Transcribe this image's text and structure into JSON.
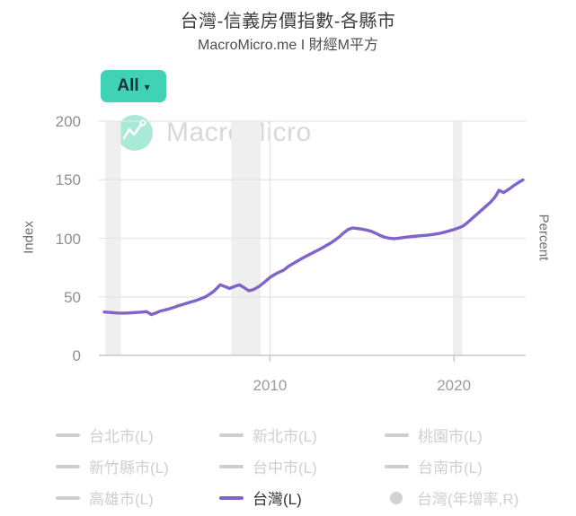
{
  "header": {
    "title": "台灣-信義房價指數-各縣市",
    "subtitle": "MacroMicro.me I 財經M平方"
  },
  "controls": {
    "range_selector": {
      "label": "All",
      "arrow": "▾"
    }
  },
  "watermark": {
    "text": "MacroMicro"
  },
  "chart_data": {
    "type": "line",
    "title": "台灣-信義房價指數-各縣市",
    "left_axis": {
      "label": "Index",
      "ticks": [
        0,
        50,
        100,
        150,
        200
      ],
      "range": [
        0,
        200
      ]
    },
    "right_axis": {
      "label": "Percent"
    },
    "x_axis": {
      "ticks": [
        2010,
        2020
      ],
      "tick_labels": [
        "2010",
        "2020"
      ],
      "range": [
        2000.7,
        2023.9
      ]
    },
    "grid": true,
    "legend_position": "bottom",
    "recession_bands": [
      [
        2001.05,
        2001.9
      ],
      [
        2007.9,
        2009.5
      ],
      [
        2020.0,
        2020.45
      ]
    ],
    "series": [
      {
        "name": "台灣(L)",
        "color": "#8164c9",
        "points": [
          [
            2001.0,
            37
          ],
          [
            2001.25,
            36.7
          ],
          [
            2001.5,
            36.4
          ],
          [
            2001.75,
            36.2
          ],
          [
            2002.0,
            36.1
          ],
          [
            2002.25,
            36.2
          ],
          [
            2002.5,
            36.4
          ],
          [
            2003.0,
            36.9
          ],
          [
            2003.3,
            37.3
          ],
          [
            2003.55,
            34.9
          ],
          [
            2003.8,
            36.2
          ],
          [
            2004.0,
            37.6
          ],
          [
            2004.25,
            38.6
          ],
          [
            2004.5,
            39.6
          ],
          [
            2004.75,
            40.8
          ],
          [
            2005.0,
            42.2
          ],
          [
            2005.25,
            43.4
          ],
          [
            2005.5,
            44.6
          ],
          [
            2005.75,
            45.8
          ],
          [
            2006.0,
            47.0
          ],
          [
            2006.25,
            48.4
          ],
          [
            2006.5,
            50.0
          ],
          [
            2006.75,
            52.5
          ],
          [
            2007.0,
            55.5
          ],
          [
            2007.3,
            60.3
          ],
          [
            2007.55,
            58.8
          ],
          [
            2007.8,
            57.2
          ],
          [
            2008.1,
            59.0
          ],
          [
            2008.35,
            60.2
          ],
          [
            2008.6,
            57.8
          ],
          [
            2008.85,
            55.2
          ],
          [
            2009.1,
            56.2
          ],
          [
            2009.4,
            58.8
          ],
          [
            2009.7,
            62.5
          ],
          [
            2010.0,
            66.5
          ],
          [
            2010.25,
            69.0
          ],
          [
            2010.5,
            71.0
          ],
          [
            2010.75,
            72.8
          ],
          [
            2011.0,
            76.0
          ],
          [
            2011.25,
            78.3
          ],
          [
            2011.5,
            80.5
          ],
          [
            2011.75,
            82.8
          ],
          [
            2012.0,
            85.0
          ],
          [
            2012.25,
            87.0
          ],
          [
            2012.5,
            89.0
          ],
          [
            2012.75,
            91.0
          ],
          [
            2013.0,
            93.2
          ],
          [
            2013.25,
            95.5
          ],
          [
            2013.5,
            98.0
          ],
          [
            2013.75,
            101.0
          ],
          [
            2014.0,
            104.5
          ],
          [
            2014.25,
            107.5
          ],
          [
            2014.5,
            108.8
          ],
          [
            2014.75,
            108.3
          ],
          [
            2015.0,
            107.8
          ],
          [
            2015.25,
            107.0
          ],
          [
            2015.5,
            106.0
          ],
          [
            2015.75,
            104.3
          ],
          [
            2016.0,
            102.3
          ],
          [
            2016.25,
            100.8
          ],
          [
            2016.5,
            100.0
          ],
          [
            2016.75,
            99.7
          ],
          [
            2017.0,
            100.1
          ],
          [
            2017.25,
            100.6
          ],
          [
            2017.5,
            101.1
          ],
          [
            2017.75,
            101.5
          ],
          [
            2018.0,
            101.9
          ],
          [
            2018.25,
            102.2
          ],
          [
            2018.5,
            102.5
          ],
          [
            2018.75,
            103.0
          ],
          [
            2019.0,
            103.6
          ],
          [
            2019.25,
            104.3
          ],
          [
            2019.5,
            105.2
          ],
          [
            2019.75,
            106.3
          ],
          [
            2020.0,
            107.5
          ],
          [
            2020.25,
            108.8
          ],
          [
            2020.5,
            110.5
          ],
          [
            2020.75,
            113.5
          ],
          [
            2021.0,
            117.0
          ],
          [
            2021.25,
            120.5
          ],
          [
            2021.5,
            124.0
          ],
          [
            2021.75,
            127.5
          ],
          [
            2022.0,
            131.0
          ],
          [
            2022.25,
            135.5
          ],
          [
            2022.45,
            141.0
          ],
          [
            2022.7,
            139.0
          ],
          [
            2023.0,
            142.0
          ],
          [
            2023.25,
            145.0
          ],
          [
            2023.5,
            147.5
          ],
          [
            2023.75,
            149.8
          ]
        ]
      }
    ]
  },
  "legend": {
    "items": [
      {
        "label": "台北市(L)",
        "marker": "line",
        "active": false,
        "color": "#cfcfcf"
      },
      {
        "label": "新北市(L)",
        "marker": "line",
        "active": false,
        "color": "#cfcfcf"
      },
      {
        "label": "桃園市(L)",
        "marker": "line",
        "active": false,
        "color": "#cfcfcf"
      },
      {
        "label": "新竹縣市(L)",
        "marker": "line",
        "active": false,
        "color": "#cfcfcf"
      },
      {
        "label": "台中市(L)",
        "marker": "line",
        "active": false,
        "color": "#cfcfcf"
      },
      {
        "label": "台南市(L)",
        "marker": "line",
        "active": false,
        "color": "#cfcfcf"
      },
      {
        "label": "高雄市(L)",
        "marker": "line",
        "active": false,
        "color": "#cfcfcf"
      },
      {
        "label": "台灣(L)",
        "marker": "line",
        "active": true,
        "color": "#8164c9"
      },
      {
        "label": "台灣(年增率,R)",
        "marker": "circle",
        "active": false,
        "color": "#d2d2d2"
      }
    ]
  },
  "colors": {
    "accent": "#3fd2b4",
    "series_line": "#8164c9",
    "disabled": "#cfcfcf",
    "recession_band": "#efefef",
    "grid": "#e7e7e7",
    "axis": "#c9c9c9",
    "watermark": "#d8d8d8",
    "logo_circle": "#a9ead6"
  }
}
